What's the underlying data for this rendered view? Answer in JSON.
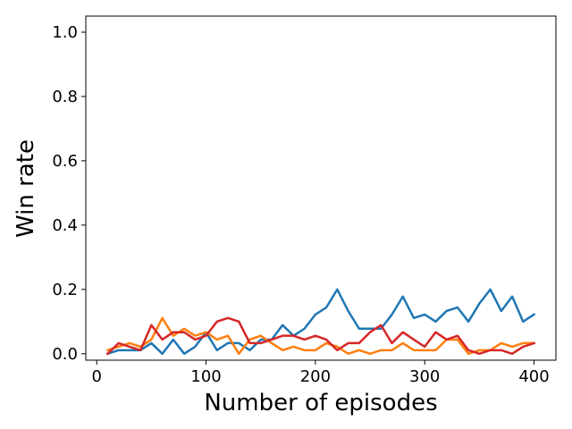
{
  "chart_data": {
    "type": "line",
    "title": "",
    "xlabel": "Number of episodes",
    "ylabel": "Win rate",
    "xlim": [
      -10,
      420
    ],
    "ylim": [
      -0.02,
      1.05
    ],
    "xticks": [
      0,
      100,
      200,
      300,
      400
    ],
    "yticks": [
      0.0,
      0.2,
      0.4,
      0.6,
      0.8,
      1.0
    ],
    "xtick_labels": [
      "0",
      "100",
      "200",
      "300",
      "400"
    ],
    "ytick_labels": [
      "0.0",
      "0.2",
      "0.4",
      "0.6",
      "0.8",
      "1.0"
    ],
    "grid": false,
    "legend": "none",
    "x": [
      10,
      20,
      30,
      40,
      50,
      60,
      70,
      80,
      90,
      100,
      110,
      120,
      130,
      140,
      150,
      160,
      170,
      180,
      190,
      200,
      210,
      220,
      230,
      240,
      250,
      260,
      270,
      280,
      290,
      300,
      310,
      320,
      330,
      340,
      350,
      360,
      370,
      380,
      390,
      400
    ],
    "series": [
      {
        "color": "#1f77b4",
        "values": [
          0.0,
          0.011,
          0.011,
          0.011,
          0.033,
          0.0,
          0.044,
          0.0,
          0.022,
          0.067,
          0.011,
          0.033,
          0.033,
          0.011,
          0.044,
          0.044,
          0.089,
          0.056,
          0.078,
          0.122,
          0.144,
          0.2,
          0.133,
          0.078,
          0.078,
          0.078,
          0.122,
          0.178,
          0.111,
          0.122,
          0.1,
          0.133,
          0.144,
          0.1,
          0.156,
          0.2,
          0.133,
          0.178,
          0.1,
          0.122
        ]
      },
      {
        "color": "#ff7f0e",
        "values": [
          0.011,
          0.022,
          0.033,
          0.022,
          0.044,
          0.111,
          0.056,
          0.078,
          0.056,
          0.067,
          0.044,
          0.056,
          0.0,
          0.044,
          0.056,
          0.033,
          0.011,
          0.022,
          0.011,
          0.011,
          0.033,
          0.022,
          0.0,
          0.011,
          0.0,
          0.011,
          0.011,
          0.033,
          0.011,
          0.011,
          0.011,
          0.044,
          0.044,
          0.0,
          0.011,
          0.011,
          0.033,
          0.022,
          0.033,
          0.033
        ]
      },
      {
        "color": "#d62728",
        "values": [
          0.0,
          0.033,
          0.022,
          0.011,
          0.089,
          0.044,
          0.067,
          0.067,
          0.044,
          0.056,
          0.1,
          0.111,
          0.1,
          0.033,
          0.033,
          0.044,
          0.056,
          0.056,
          0.044,
          0.056,
          0.044,
          0.011,
          0.033,
          0.033,
          0.067,
          0.089,
          0.033,
          0.067,
          0.044,
          0.022,
          0.067,
          0.044,
          0.056,
          0.011,
          0.0,
          0.011,
          0.011,
          0.0,
          0.022,
          0.033
        ]
      }
    ]
  }
}
